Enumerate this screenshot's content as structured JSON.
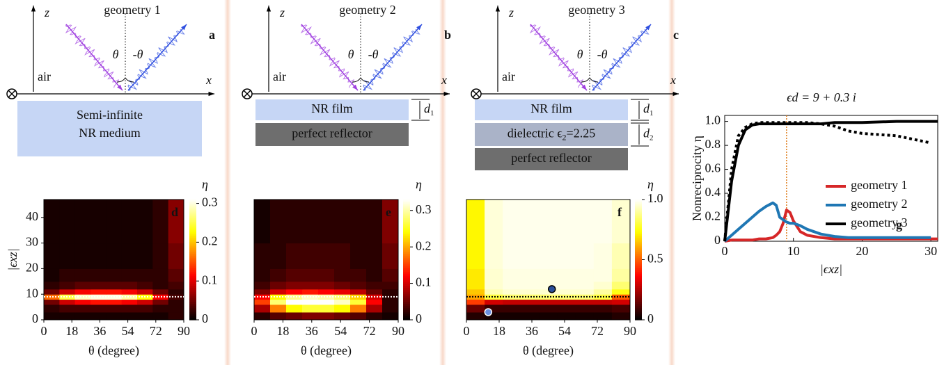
{
  "diagrams": [
    {
      "title": "geometry 1",
      "label": "a",
      "z": "z",
      "x": "x",
      "theta": "θ",
      "minus_theta": "-θ",
      "air": "air",
      "layers": [
        {
          "text": "Semi-infinite",
          "text2": "NR medium"
        }
      ]
    },
    {
      "title": "geometry 2",
      "label": "b",
      "z": "z",
      "x": "x",
      "theta": "θ",
      "minus_theta": "-θ",
      "air": "air",
      "layers": [
        {
          "text": "NR film",
          "thickness": {
            "symbol": "d",
            "subscript": "1"
          }
        },
        {
          "text": "perfect reflector"
        }
      ]
    },
    {
      "title": "geometry 3",
      "label": "c",
      "z": "z",
      "x": "x",
      "theta": "θ",
      "minus_theta": "-θ",
      "air": "air",
      "layers": [
        {
          "text": "NR film",
          "thickness": {
            "symbol": "d",
            "subscript": "1"
          }
        },
        {
          "text": "dielectric ϵ",
          "sub": "2",
          "after": "=2.25",
          "thickness": {
            "symbol": "d",
            "subscript": "2"
          }
        },
        {
          "text": "perfect reflector"
        }
      ]
    }
  ],
  "chart_data": [
    {
      "type": "heatmap",
      "label": "d",
      "xlabel": "θ (degree)",
      "ylabel": "|ϵxz|",
      "xlim": [
        0,
        90
      ],
      "ylim": [
        0,
        47
      ],
      "xticks": [
        0,
        18,
        36,
        54,
        72,
        90
      ],
      "yticks": [
        0,
        10,
        20,
        30,
        40
      ],
      "x_edges": [
        0,
        10,
        20,
        30,
        40,
        50,
        60,
        70,
        80,
        90
      ],
      "y_edges": [
        0,
        3,
        6,
        8,
        10,
        12,
        15,
        20,
        30,
        47
      ],
      "values": [
        [
          0.01,
          0.01,
          0.01,
          0.01,
          0.01,
          0.01,
          0.01,
          0.01,
          0.02
        ],
        [
          0.02,
          0.03,
          0.03,
          0.03,
          0.03,
          0.03,
          0.03,
          0.02,
          0.02
        ],
        [
          0.05,
          0.09,
          0.11,
          0.12,
          0.12,
          0.11,
          0.09,
          0.05,
          0.02
        ],
        [
          0.16,
          0.25,
          0.29,
          0.3,
          0.3,
          0.28,
          0.23,
          0.11,
          0.03
        ],
        [
          0.05,
          0.09,
          0.11,
          0.12,
          0.12,
          0.11,
          0.09,
          0.05,
          0.02
        ],
        [
          0.02,
          0.03,
          0.04,
          0.04,
          0.04,
          0.04,
          0.03,
          0.02,
          0.03
        ],
        [
          0.01,
          0.02,
          0.02,
          0.02,
          0.02,
          0.02,
          0.02,
          0.02,
          0.04
        ],
        [
          0.01,
          0.01,
          0.01,
          0.01,
          0.01,
          0.01,
          0.01,
          0.02,
          0.05
        ],
        [
          0.01,
          0.01,
          0.01,
          0.01,
          0.01,
          0.01,
          0.01,
          0.02,
          0.06
        ]
      ],
      "clim": [
        0,
        0.31
      ],
      "colorbar_ticks": [
        0,
        0.1,
        0.2,
        0.3
      ],
      "colorbar_label": "η",
      "hline": 9,
      "hline_color": "#ffffff"
    },
    {
      "type": "heatmap",
      "label": "e",
      "xlabel": "θ (degree)",
      "xlim": [
        0,
        90
      ],
      "ylim": [
        0,
        47
      ],
      "xticks": [
        0,
        18,
        36,
        54,
        72,
        90
      ],
      "x_edges": [
        0,
        10,
        20,
        30,
        40,
        50,
        60,
        70,
        80,
        90
      ],
      "y_edges": [
        0,
        3,
        6,
        8,
        10,
        12,
        15,
        20,
        30,
        47
      ],
      "values": [
        [
          0.02,
          0.04,
          0.05,
          0.06,
          0.06,
          0.05,
          0.04,
          0.02,
          0.01
        ],
        [
          0.08,
          0.18,
          0.24,
          0.26,
          0.26,
          0.24,
          0.18,
          0.08,
          0.02
        ],
        [
          0.15,
          0.28,
          0.33,
          0.33,
          0.33,
          0.31,
          0.26,
          0.12,
          0.02
        ],
        [
          0.12,
          0.24,
          0.29,
          0.31,
          0.3,
          0.28,
          0.22,
          0.1,
          0.02
        ],
        [
          0.06,
          0.1,
          0.12,
          0.13,
          0.12,
          0.11,
          0.09,
          0.05,
          0.02
        ],
        [
          0.03,
          0.05,
          0.06,
          0.06,
          0.06,
          0.05,
          0.04,
          0.03,
          0.03
        ],
        [
          0.02,
          0.03,
          0.04,
          0.04,
          0.04,
          0.03,
          0.03,
          0.02,
          0.04
        ],
        [
          0.02,
          0.02,
          0.03,
          0.03,
          0.03,
          0.03,
          0.02,
          0.02,
          0.05
        ],
        [
          0.01,
          0.02,
          0.02,
          0.02,
          0.02,
          0.02,
          0.02,
          0.02,
          0.06
        ]
      ],
      "clim": [
        0,
        0.33
      ],
      "colorbar_ticks": [
        0,
        0.1,
        0.2,
        0.3
      ],
      "colorbar_label": "η",
      "hline": 9,
      "hline_color": "#ffffff"
    },
    {
      "type": "heatmap",
      "label": "f",
      "xlabel": "θ (degree)",
      "xlim": [
        0,
        90
      ],
      "ylim": [
        0,
        47
      ],
      "xticks": [
        0,
        18,
        36,
        54,
        72,
        90
      ],
      "x_edges": [
        0,
        10,
        20,
        30,
        40,
        50,
        60,
        70,
        80,
        90
      ],
      "y_edges": [
        0,
        3,
        6,
        8,
        10,
        12,
        15,
        20,
        30,
        47
      ],
      "values": [
        [
          0.05,
          0.03,
          0.03,
          0.03,
          0.03,
          0.03,
          0.03,
          0.03,
          0.05
        ],
        [
          0.15,
          0.08,
          0.08,
          0.08,
          0.08,
          0.08,
          0.08,
          0.08,
          0.1
        ],
        [
          0.45,
          0.3,
          0.28,
          0.28,
          0.28,
          0.28,
          0.28,
          0.28,
          0.3
        ],
        [
          0.6,
          0.8,
          0.85,
          0.85,
          0.85,
          0.85,
          0.85,
          0.8,
          0.5
        ],
        [
          0.65,
          0.92,
          0.95,
          0.95,
          0.95,
          0.95,
          0.95,
          0.9,
          0.75
        ],
        [
          0.7,
          0.95,
          0.97,
          0.97,
          0.97,
          0.97,
          0.97,
          0.95,
          0.85
        ],
        [
          0.7,
          0.95,
          0.97,
          0.97,
          0.97,
          0.97,
          0.97,
          0.97,
          0.9
        ],
        [
          0.72,
          0.96,
          0.98,
          0.98,
          0.98,
          0.98,
          0.98,
          0.97,
          0.92
        ],
        [
          0.72,
          0.96,
          0.98,
          0.98,
          0.98,
          0.98,
          0.98,
          0.98,
          0.95
        ]
      ],
      "clim": [
        0,
        1
      ],
      "colorbar_ticks": [
        0,
        0.5,
        {
          "value": 1,
          "label": "1.0"
        }
      ],
      "colorbar_label": "η",
      "hline": 9,
      "hline_color": "#000000",
      "points": {
        "x": [
          12,
          47
        ],
        "y": [
          3,
          12
        ],
        "colors": [
          "#6a8fe0",
          "#2a4f9a"
        ]
      }
    },
    {
      "type": "line",
      "label": "g",
      "title": "ϵd = 9 + 0.3 i",
      "xlabel": "|ϵxz|",
      "ylabel": "Nonreciprocity η",
      "xlim": [
        0,
        31
      ],
      "ylim": [
        0,
        1.05
      ],
      "xticks": [
        0,
        10,
        20,
        30
      ],
      "yticks": [
        0,
        0.2,
        0.4,
        0.6,
        0.8,
        {
          "value": 1,
          "label": "1.0"
        }
      ],
      "legend": "right",
      "vline": 9,
      "vline_color": "#e08020",
      "x": [
        0,
        1,
        2,
        3,
        4,
        5,
        6,
        7,
        7.5,
        8,
        8.5,
        9,
        9.5,
        10,
        11,
        12,
        14,
        16,
        18,
        20,
        25,
        30,
        31
      ],
      "series": [
        {
          "name": "geometry 1",
          "color": "#d62728",
          "values": [
            0,
            0.01,
            0.01,
            0.01,
            0.01,
            0.02,
            0.02,
            0.03,
            0.05,
            0.08,
            0.15,
            0.26,
            0.24,
            0.17,
            0.08,
            0.05,
            0.03,
            0.02,
            0.02,
            0.02,
            0.02,
            0.02,
            0.02
          ]
        },
        {
          "name": "geometry 2",
          "color": "#1f77b4",
          "values": [
            0,
            0.05,
            0.1,
            0.15,
            0.2,
            0.25,
            0.29,
            0.32,
            0.3,
            0.2,
            0.18,
            0.16,
            0.15,
            0.15,
            0.13,
            0.1,
            0.06,
            0.04,
            0.03,
            0.03,
            0.03,
            0.03,
            null
          ]
        },
        {
          "name": "geometry 3",
          "color": "#000000",
          "values": [
            0,
            0.5,
            0.8,
            0.93,
            0.97,
            0.98,
            0.98,
            0.98,
            0.98,
            0.98,
            0.98,
            0.98,
            0.98,
            0.98,
            0.98,
            0.98,
            0.98,
            0.99,
            0.99,
            0.99,
            1,
            1,
            1
          ]
        },
        {
          "color": "#000000",
          "dash": true,
          "values": [
            0,
            0.6,
            0.88,
            0.95,
            0.98,
            0.99,
            0.99,
            0.99,
            0.99,
            0.99,
            0.99,
            0.99,
            0.99,
            0.99,
            0.99,
            0.99,
            0.98,
            0.96,
            0.92,
            0.9,
            0.88,
            0.82,
            null
          ]
        }
      ]
    }
  ]
}
